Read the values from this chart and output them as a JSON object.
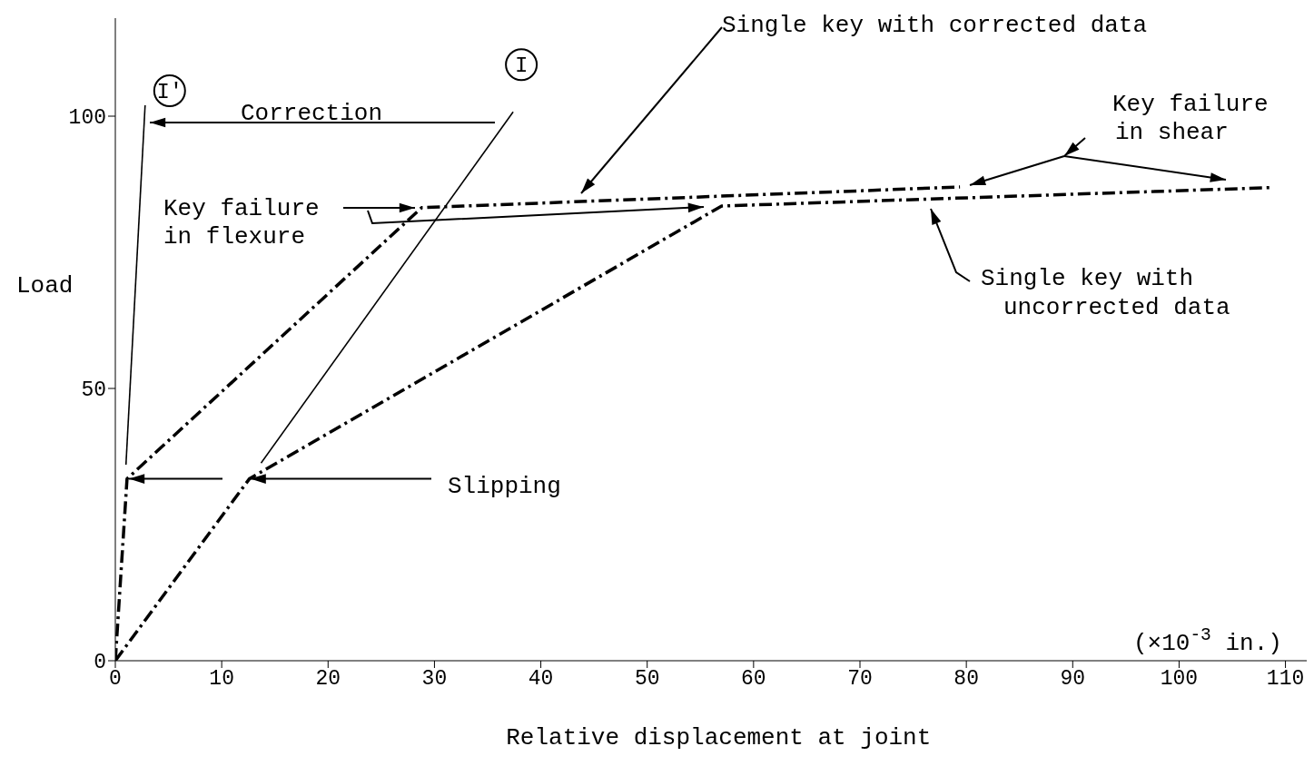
{
  "chart_data": {
    "type": "line",
    "xlabel": "Relative displacement at joint",
    "ylabel": "Load",
    "xlim": [
      0,
      112
    ],
    "ylim": [
      0,
      118
    ],
    "xticks": [
      0,
      10,
      20,
      30,
      40,
      50,
      60,
      70,
      80,
      90,
      100,
      110
    ],
    "yticks": [
      0,
      50,
      100
    ],
    "series": [
      {
        "name": "Single key with corrected data",
        "color": "#000000",
        "line_style": "dashed",
        "x": [
          0,
          1.1,
          28.8,
          79.4
        ],
        "values": [
          0,
          33.4,
          83.2,
          87
        ]
      },
      {
        "name": "Single key with uncorrected data",
        "color": "#000000",
        "line_style": "dashed",
        "x": [
          0,
          12.6,
          57,
          108.9
        ],
        "values": [
          0,
          33.4,
          83.5,
          86.9
        ]
      },
      {
        "name": "I'",
        "color": "#000000",
        "line_style": "solid",
        "x": [
          1,
          2.8
        ],
        "values": [
          36,
          102
        ]
      },
      {
        "name": "I",
        "color": "#000000",
        "line_style": "solid",
        "x": [
          13.7,
          37.4
        ],
        "values": [
          36.3,
          100.8
        ]
      }
    ],
    "annotations": [
      "Correction",
      "Key failure in flexure",
      {
        "text": "Slipping",
        "x": 12.6,
        "y": 33.4
      },
      "Key failure in shear",
      "(×10$^{-3}$ in.)"
    ]
  }
}
